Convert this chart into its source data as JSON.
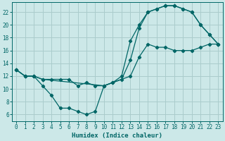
{
  "title": "",
  "xlabel": "Humidex (Indice chaleur)",
  "bg_color": "#cce8e8",
  "line_color": "#006666",
  "grid_color": "#aacccc",
  "xlim": [
    -0.5,
    23.5
  ],
  "ylim": [
    5.0,
    23.5
  ],
  "xticks": [
    0,
    1,
    2,
    3,
    4,
    5,
    6,
    7,
    8,
    9,
    10,
    11,
    12,
    13,
    14,
    15,
    16,
    17,
    18,
    19,
    20,
    21,
    22,
    23
  ],
  "yticks": [
    6,
    8,
    10,
    12,
    14,
    16,
    18,
    20,
    22
  ],
  "line1_x": [
    0,
    1,
    2,
    3,
    4,
    5,
    6,
    7,
    8,
    9,
    10,
    11,
    12,
    13,
    14,
    15,
    16,
    17,
    18,
    19,
    20,
    21,
    22,
    23
  ],
  "line1_y": [
    13,
    12,
    12,
    10.5,
    9,
    7,
    7,
    6.5,
    6,
    6.5,
    10.5,
    11,
    11.5,
    14.5,
    19.5,
    22,
    22.5,
    23,
    23,
    22.5,
    22,
    20,
    18.5,
    17
  ],
  "line2_x": [
    0,
    1,
    2,
    3,
    4,
    5,
    6,
    7,
    8,
    9,
    10,
    11,
    12,
    13,
    14,
    15,
    16,
    17,
    18,
    19,
    20,
    21,
    22,
    23
  ],
  "line2_y": [
    13,
    12,
    12,
    11.5,
    11.5,
    11.5,
    11.5,
    10.5,
    11,
    10.5,
    10.5,
    11,
    12,
    17.5,
    20,
    22,
    22.5,
    23,
    23,
    22.5,
    22,
    20,
    18.5,
    17
  ],
  "line3_x": [
    0,
    1,
    2,
    3,
    10,
    13,
    14,
    15,
    16,
    17,
    18,
    19,
    20,
    21,
    22,
    23
  ],
  "line3_y": [
    13,
    12,
    12,
    11.5,
    10.5,
    12,
    15,
    17,
    16.5,
    16.5,
    16,
    16,
    16,
    16.5,
    17,
    17
  ]
}
